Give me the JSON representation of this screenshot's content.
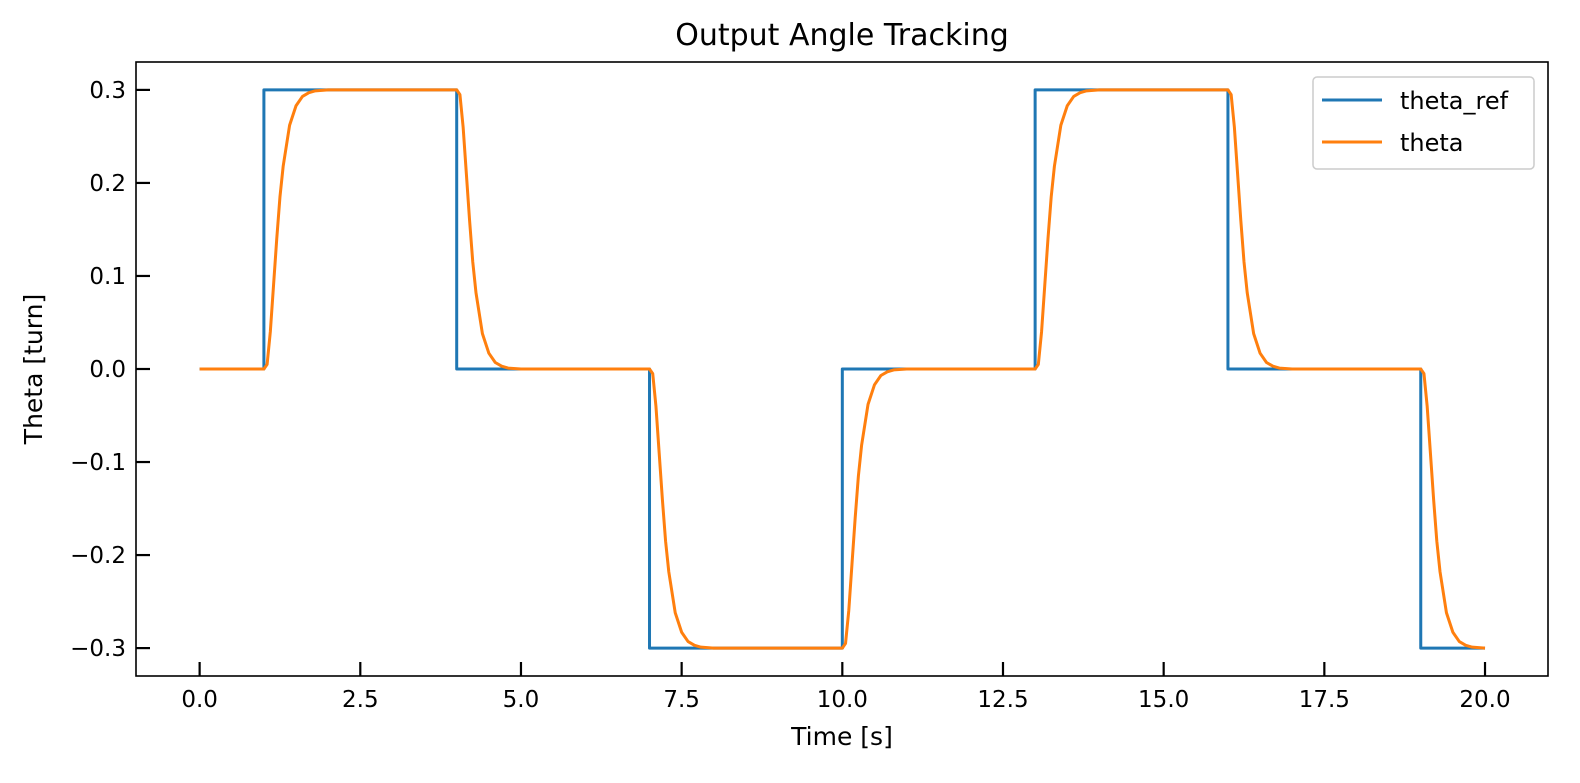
{
  "chart_data": {
    "type": "line",
    "title": "Output Angle Tracking",
    "xlabel": "Time [s]",
    "ylabel": "Theta [turn]",
    "xlim": [
      -0.99,
      20.98
    ],
    "ylim": [
      -0.33,
      0.33
    ],
    "xticks": [
      0.0,
      2.5,
      5.0,
      7.5,
      10.0,
      12.5,
      15.0,
      17.5,
      20.0
    ],
    "xtick_labels": [
      "0.0",
      "2.5",
      "5.0",
      "7.5",
      "10.0",
      "12.5",
      "15.0",
      "17.5",
      "20.0"
    ],
    "yticks": [
      0.3,
      0.2,
      0.1,
      0.0,
      -0.1,
      -0.2,
      -0.3
    ],
    "ytick_labels": [
      "0.3",
      "0.2",
      "0.1",
      "0.0",
      "−0.1",
      "−0.2",
      "−0.3"
    ],
    "grid": false,
    "legend_position": "upper right",
    "series": [
      {
        "name": "theta_ref",
        "color": "#1f77b4",
        "x": [
          0,
          1,
          1,
          4,
          4,
          7,
          7,
          10,
          10,
          13,
          13,
          16,
          16,
          19,
          19,
          20
        ],
        "y": [
          0,
          0,
          0.3,
          0.3,
          0,
          0,
          -0.3,
          -0.3,
          0,
          0,
          0.3,
          0.3,
          0,
          0,
          -0.3,
          -0.3
        ]
      },
      {
        "name": "theta",
        "color": "#ff7f0e",
        "x": [
          0,
          1.0,
          1.05,
          1.1,
          1.15,
          1.2,
          1.25,
          1.3,
          1.4,
          1.5,
          1.6,
          1.7,
          1.8,
          2.0,
          2.2,
          4.0,
          4.05,
          4.1,
          4.15,
          4.2,
          4.25,
          4.3,
          4.4,
          4.5,
          4.6,
          4.7,
          4.8,
          5.0,
          5.2,
          7.0,
          7.05,
          7.1,
          7.15,
          7.2,
          7.25,
          7.3,
          7.4,
          7.5,
          7.6,
          7.7,
          7.8,
          8.0,
          8.2,
          10.0,
          10.05,
          10.1,
          10.15,
          10.2,
          10.25,
          10.3,
          10.4,
          10.5,
          10.6,
          10.7,
          10.8,
          11.0,
          11.2,
          13.0,
          13.05,
          13.1,
          13.15,
          13.2,
          13.25,
          13.3,
          13.4,
          13.5,
          13.6,
          13.7,
          13.8,
          14.0,
          14.2,
          16.0,
          16.05,
          16.1,
          16.15,
          16.2,
          16.25,
          16.3,
          16.4,
          16.5,
          16.6,
          16.7,
          16.8,
          17.0,
          17.2,
          19.0,
          19.05,
          19.1,
          19.15,
          19.2,
          19.25,
          19.3,
          19.4,
          19.5,
          19.6,
          19.7,
          19.8,
          20.0
        ],
        "y": [
          0,
          0,
          0.005,
          0.04,
          0.09,
          0.14,
          0.185,
          0.218,
          0.262,
          0.283,
          0.293,
          0.297,
          0.299,
          0.3,
          0.3,
          0.3,
          0.295,
          0.26,
          0.21,
          0.16,
          0.115,
          0.082,
          0.038,
          0.017,
          0.007,
          0.003,
          0.001,
          0,
          0,
          0,
          -0.005,
          -0.04,
          -0.09,
          -0.14,
          -0.185,
          -0.218,
          -0.262,
          -0.283,
          -0.293,
          -0.297,
          -0.299,
          -0.3,
          -0.3,
          -0.3,
          -0.295,
          -0.26,
          -0.21,
          -0.16,
          -0.115,
          -0.082,
          -0.038,
          -0.017,
          -0.007,
          -0.003,
          -0.001,
          0,
          0,
          0,
          0.005,
          0.04,
          0.09,
          0.14,
          0.185,
          0.218,
          0.262,
          0.283,
          0.293,
          0.297,
          0.299,
          0.3,
          0.3,
          0.3,
          0.295,
          0.26,
          0.21,
          0.16,
          0.115,
          0.082,
          0.038,
          0.017,
          0.007,
          0.003,
          0.001,
          0,
          0,
          0,
          -0.005,
          -0.04,
          -0.09,
          -0.14,
          -0.185,
          -0.218,
          -0.262,
          -0.283,
          -0.293,
          -0.297,
          -0.299,
          -0.3
        ]
      }
    ]
  }
}
